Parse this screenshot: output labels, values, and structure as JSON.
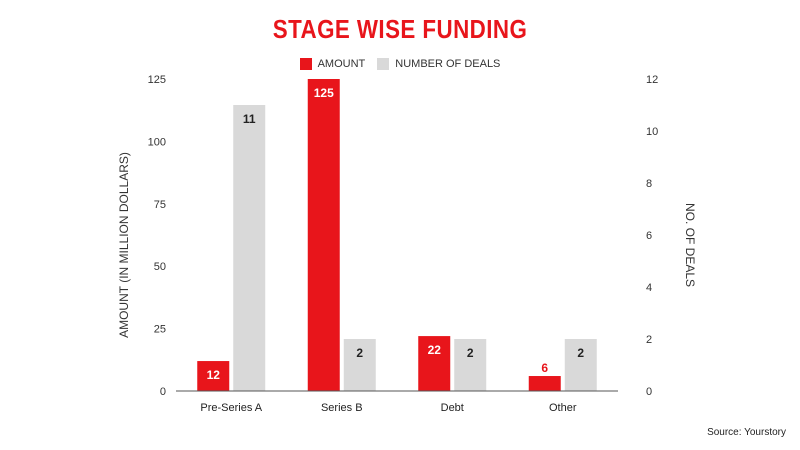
{
  "chart_data": {
    "type": "bar",
    "title": "STAGE WISE FUNDING",
    "categories": [
      "Pre-Series A",
      "Series B",
      "Debt",
      "Other"
    ],
    "series": [
      {
        "name": "AMOUNT",
        "axis": "left",
        "color": "#e8151b",
        "values": [
          12,
          125,
          22,
          6
        ],
        "labels": [
          "12",
          "125",
          "22",
          "6"
        ],
        "label_colors": [
          "#ffffff",
          "#ffffff",
          "#ffffff",
          "#e8151b"
        ]
      },
      {
        "name": "NUMBER OF DEALS",
        "axis": "right",
        "color": "#d9d9d9",
        "values": [
          11,
          2,
          2,
          2
        ],
        "labels": [
          "11",
          "2",
          "2",
          "2"
        ],
        "label_colors": [
          "#222222",
          "#222222",
          "#222222",
          "#222222"
        ]
      }
    ],
    "ylabel": "AMOUNT (IN MILLION DOLLARS)",
    "ylabel_right": "NO. OF DEALS",
    "ylim": [
      0,
      125
    ],
    "ylim_right": [
      0,
      12
    ],
    "yticks": [
      "0",
      "25",
      "50",
      "75",
      "100",
      "125"
    ],
    "yticks_right": [
      "0",
      "2",
      "4",
      "6",
      "8",
      "10",
      "12"
    ],
    "grid": false,
    "legend_position": "top-center"
  },
  "source": "Source: Yourstory"
}
